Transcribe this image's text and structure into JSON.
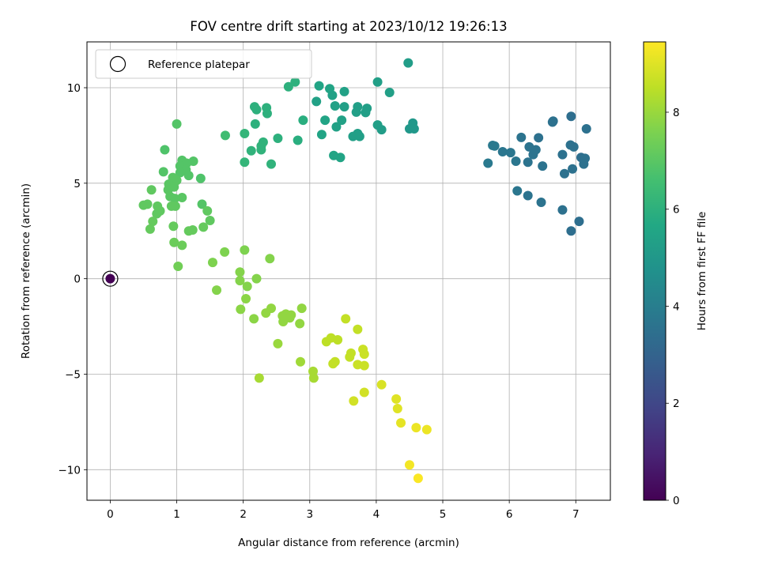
{
  "chart_data": {
    "type": "scatter",
    "title": "FOV centre drift starting at 2023/10/12 19:26:13",
    "xlabel": "Angular distance from reference (arcmin)",
    "ylabel": "Rotation from reference (arcmin)",
    "colorbar_label": "Hours from first FF file",
    "colormap": "viridis",
    "xlim": [
      -0.35,
      7.52
    ],
    "ylim": [
      -11.6,
      12.4
    ],
    "clim": [
      0,
      9.45
    ],
    "xticks": [
      0,
      1,
      2,
      3,
      4,
      5,
      6,
      7
    ],
    "yticks": [
      -10,
      -5,
      0,
      5,
      10
    ],
    "cticks": [
      0,
      2,
      4,
      6,
      8
    ],
    "grid": true,
    "legend": {
      "position": "top-left",
      "entries": [
        {
          "label": "Reference platepar",
          "marker": "open-circle"
        }
      ]
    },
    "reference_point": {
      "x": 0,
      "y": 0,
      "t": 0
    },
    "points": [
      {
        "x": 4.48,
        "y": 11.3,
        "t": 5.2
      },
      {
        "x": 4.02,
        "y": 10.3,
        "t": 5.3
      },
      {
        "x": 3.3,
        "y": 9.95,
        "t": 5.5
      },
      {
        "x": 3.14,
        "y": 10.1,
        "t": 5.5
      },
      {
        "x": 4.2,
        "y": 9.75,
        "t": 5.3
      },
      {
        "x": 3.52,
        "y": 9.8,
        "t": 5.4
      },
      {
        "x": 3.34,
        "y": 9.6,
        "t": 5.4
      },
      {
        "x": 3.1,
        "y": 9.28,
        "t": 5.4
      },
      {
        "x": 3.38,
        "y": 9.05,
        "t": 5.4
      },
      {
        "x": 3.52,
        "y": 9.0,
        "t": 5.3
      },
      {
        "x": 3.72,
        "y": 9.0,
        "t": 5.3
      },
      {
        "x": 3.86,
        "y": 8.92,
        "t": 5.3
      },
      {
        "x": 3.7,
        "y": 8.72,
        "t": 5.3
      },
      {
        "x": 3.84,
        "y": 8.7,
        "t": 5.3
      },
      {
        "x": 3.48,
        "y": 8.3,
        "t": 5.4
      },
      {
        "x": 3.23,
        "y": 8.3,
        "t": 5.5
      },
      {
        "x": 4.02,
        "y": 8.05,
        "t": 5.3
      },
      {
        "x": 3.4,
        "y": 7.95,
        "t": 5.4
      },
      {
        "x": 4.08,
        "y": 7.8,
        "t": 5.2
      },
      {
        "x": 4.55,
        "y": 8.15,
        "t": 5.0
      },
      {
        "x": 4.5,
        "y": 7.85,
        "t": 5.0
      },
      {
        "x": 4.57,
        "y": 7.85,
        "t": 5.0
      },
      {
        "x": 3.65,
        "y": 7.45,
        "t": 5.3
      },
      {
        "x": 3.75,
        "y": 7.45,
        "t": 5.3
      },
      {
        "x": 3.18,
        "y": 7.55,
        "t": 5.5
      },
      {
        "x": 3.72,
        "y": 7.6,
        "t": 5.3
      },
      {
        "x": 3.36,
        "y": 6.45,
        "t": 5.5
      },
      {
        "x": 3.46,
        "y": 6.35,
        "t": 5.5
      },
      {
        "x": 2.78,
        "y": 10.3,
        "t": 6.0
      },
      {
        "x": 2.68,
        "y": 10.05,
        "t": 6.0
      },
      {
        "x": 2.17,
        "y": 9.0,
        "t": 6.0
      },
      {
        "x": 2.2,
        "y": 8.85,
        "t": 6.0
      },
      {
        "x": 2.35,
        "y": 8.95,
        "t": 6.0
      },
      {
        "x": 2.36,
        "y": 8.65,
        "t": 6.0
      },
      {
        "x": 2.9,
        "y": 8.3,
        "t": 5.9
      },
      {
        "x": 2.18,
        "y": 8.1,
        "t": 6.0
      },
      {
        "x": 2.02,
        "y": 7.6,
        "t": 6.2
      },
      {
        "x": 2.3,
        "y": 7.15,
        "t": 6.1
      },
      {
        "x": 2.52,
        "y": 7.35,
        "t": 6.0
      },
      {
        "x": 2.82,
        "y": 7.25,
        "t": 5.9
      },
      {
        "x": 2.27,
        "y": 6.95,
        "t": 6.1
      },
      {
        "x": 2.27,
        "y": 6.75,
        "t": 6.1
      },
      {
        "x": 2.12,
        "y": 6.7,
        "t": 6.1
      },
      {
        "x": 2.02,
        "y": 6.1,
        "t": 6.2
      },
      {
        "x": 2.42,
        "y": 6.0,
        "t": 6.1
      },
      {
        "x": 1.73,
        "y": 7.5,
        "t": 6.5
      },
      {
        "x": 6.93,
        "y": 8.5,
        "t": 3.4
      },
      {
        "x": 7.16,
        "y": 7.85,
        "t": 3.5
      },
      {
        "x": 6.66,
        "y": 8.25,
        "t": 3.5
      },
      {
        "x": 6.65,
        "y": 8.2,
        "t": 3.5
      },
      {
        "x": 6.18,
        "y": 7.4,
        "t": 3.6
      },
      {
        "x": 6.44,
        "y": 7.38,
        "t": 3.5
      },
      {
        "x": 5.75,
        "y": 6.98,
        "t": 3.8
      },
      {
        "x": 5.78,
        "y": 6.95,
        "t": 3.8
      },
      {
        "x": 6.3,
        "y": 6.9,
        "t": 3.6
      },
      {
        "x": 6.4,
        "y": 6.75,
        "t": 3.6
      },
      {
        "x": 6.36,
        "y": 6.5,
        "t": 3.6
      },
      {
        "x": 6.92,
        "y": 7.0,
        "t": 3.5
      },
      {
        "x": 6.97,
        "y": 6.9,
        "t": 3.5
      },
      {
        "x": 5.9,
        "y": 6.65,
        "t": 3.7
      },
      {
        "x": 6.02,
        "y": 6.6,
        "t": 3.7
      },
      {
        "x": 6.8,
        "y": 6.5,
        "t": 3.5
      },
      {
        "x": 7.08,
        "y": 6.35,
        "t": 3.4
      },
      {
        "x": 7.14,
        "y": 6.3,
        "t": 3.5
      },
      {
        "x": 7.12,
        "y": 6.0,
        "t": 3.5
      },
      {
        "x": 5.68,
        "y": 6.05,
        "t": 3.8
      },
      {
        "x": 6.1,
        "y": 6.15,
        "t": 3.7
      },
      {
        "x": 6.28,
        "y": 6.1,
        "t": 3.6
      },
      {
        "x": 6.5,
        "y": 5.9,
        "t": 3.6
      },
      {
        "x": 6.95,
        "y": 5.75,
        "t": 3.5
      },
      {
        "x": 6.83,
        "y": 5.5,
        "t": 3.5
      },
      {
        "x": 6.12,
        "y": 4.6,
        "t": 3.7
      },
      {
        "x": 6.28,
        "y": 4.35,
        "t": 3.6
      },
      {
        "x": 6.48,
        "y": 4.0,
        "t": 3.6
      },
      {
        "x": 6.8,
        "y": 3.6,
        "t": 3.5
      },
      {
        "x": 7.05,
        "y": 3.0,
        "t": 3.4
      },
      {
        "x": 6.93,
        "y": 2.5,
        "t": 3.4
      },
      {
        "x": 1.0,
        "y": 8.1,
        "t": 6.9
      },
      {
        "x": 0.82,
        "y": 6.75,
        "t": 6.8
      },
      {
        "x": 1.08,
        "y": 6.2,
        "t": 6.9
      },
      {
        "x": 1.25,
        "y": 6.15,
        "t": 6.9
      },
      {
        "x": 1.15,
        "y": 6.05,
        "t": 6.9
      },
      {
        "x": 1.05,
        "y": 5.9,
        "t": 6.9
      },
      {
        "x": 1.14,
        "y": 5.7,
        "t": 6.9
      },
      {
        "x": 1.05,
        "y": 5.55,
        "t": 6.9
      },
      {
        "x": 0.8,
        "y": 5.6,
        "t": 6.9
      },
      {
        "x": 1.18,
        "y": 5.4,
        "t": 6.9
      },
      {
        "x": 1.36,
        "y": 5.25,
        "t": 6.8
      },
      {
        "x": 0.94,
        "y": 5.3,
        "t": 7.0
      },
      {
        "x": 1.0,
        "y": 5.15,
        "t": 7.0
      },
      {
        "x": 0.88,
        "y": 4.95,
        "t": 7.0
      },
      {
        "x": 0.96,
        "y": 4.8,
        "t": 7.0
      },
      {
        "x": 0.87,
        "y": 4.65,
        "t": 7.0
      },
      {
        "x": 0.62,
        "y": 4.65,
        "t": 7.1
      },
      {
        "x": 0.9,
        "y": 4.3,
        "t": 7.0
      },
      {
        "x": 1.08,
        "y": 4.25,
        "t": 7.0
      },
      {
        "x": 0.97,
        "y": 4.2,
        "t": 7.0
      },
      {
        "x": 1.38,
        "y": 3.9,
        "t": 6.9
      },
      {
        "x": 0.5,
        "y": 3.85,
        "t": 7.1
      },
      {
        "x": 0.56,
        "y": 3.9,
        "t": 7.1
      },
      {
        "x": 0.71,
        "y": 3.8,
        "t": 7.1
      },
      {
        "x": 0.92,
        "y": 3.8,
        "t": 7.1
      },
      {
        "x": 0.98,
        "y": 3.8,
        "t": 7.1
      },
      {
        "x": 0.75,
        "y": 3.55,
        "t": 7.1
      },
      {
        "x": 0.7,
        "y": 3.4,
        "t": 7.1
      },
      {
        "x": 1.46,
        "y": 3.55,
        "t": 7.1
      },
      {
        "x": 0.64,
        "y": 3.0,
        "t": 7.2
      },
      {
        "x": 1.5,
        "y": 3.05,
        "t": 7.1
      },
      {
        "x": 0.95,
        "y": 2.75,
        "t": 7.2
      },
      {
        "x": 1.4,
        "y": 2.7,
        "t": 7.2
      },
      {
        "x": 0.6,
        "y": 2.6,
        "t": 7.2
      },
      {
        "x": 1.18,
        "y": 2.5,
        "t": 7.2
      },
      {
        "x": 1.24,
        "y": 2.55,
        "t": 7.2
      },
      {
        "x": 0.96,
        "y": 1.9,
        "t": 7.3
      },
      {
        "x": 1.08,
        "y": 1.75,
        "t": 7.3
      },
      {
        "x": 1.02,
        "y": 0.65,
        "t": 7.4
      },
      {
        "x": 1.72,
        "y": 1.4,
        "t": 7.6
      },
      {
        "x": 2.02,
        "y": 1.5,
        "t": 7.6
      },
      {
        "x": 2.4,
        "y": 1.05,
        "t": 7.7
      },
      {
        "x": 1.54,
        "y": 0.85,
        "t": 7.6
      },
      {
        "x": 1.6,
        "y": -0.6,
        "t": 7.7
      },
      {
        "x": 1.95,
        "y": 0.35,
        "t": 7.7
      },
      {
        "x": 1.95,
        "y": -0.1,
        "t": 7.7
      },
      {
        "x": 2.06,
        "y": -0.4,
        "t": 7.7
      },
      {
        "x": 2.2,
        "y": 0.0,
        "t": 7.7
      },
      {
        "x": 2.04,
        "y": -1.05,
        "t": 7.8
      },
      {
        "x": 1.96,
        "y": -1.6,
        "t": 7.8
      },
      {
        "x": 2.16,
        "y": -2.1,
        "t": 7.8
      },
      {
        "x": 2.34,
        "y": -1.8,
        "t": 7.9
      },
      {
        "x": 2.42,
        "y": -1.55,
        "t": 7.9
      },
      {
        "x": 2.59,
        "y": -1.95,
        "t": 7.9
      },
      {
        "x": 2.64,
        "y": -1.85,
        "t": 7.9
      },
      {
        "x": 2.72,
        "y": -1.9,
        "t": 7.9
      },
      {
        "x": 2.88,
        "y": -1.55,
        "t": 7.9
      },
      {
        "x": 2.6,
        "y": -2.25,
        "t": 7.9
      },
      {
        "x": 2.85,
        "y": -2.35,
        "t": 7.9
      },
      {
        "x": 2.7,
        "y": -2.05,
        "t": 7.9
      },
      {
        "x": 2.52,
        "y": -3.4,
        "t": 8.0
      },
      {
        "x": 2.86,
        "y": -4.35,
        "t": 8.1
      },
      {
        "x": 2.24,
        "y": -5.2,
        "t": 8.2
      },
      {
        "x": 3.05,
        "y": -4.85,
        "t": 8.2
      },
      {
        "x": 3.06,
        "y": -5.2,
        "t": 8.2
      },
      {
        "x": 3.25,
        "y": -3.3,
        "t": 8.5
      },
      {
        "x": 3.32,
        "y": -3.1,
        "t": 8.5
      },
      {
        "x": 3.42,
        "y": -3.2,
        "t": 8.5
      },
      {
        "x": 3.54,
        "y": -2.1,
        "t": 8.6
      },
      {
        "x": 3.72,
        "y": -2.65,
        "t": 8.6
      },
      {
        "x": 3.62,
        "y": -3.9,
        "t": 8.6
      },
      {
        "x": 3.6,
        "y": -4.1,
        "t": 8.6
      },
      {
        "x": 3.8,
        "y": -3.7,
        "t": 8.7
      },
      {
        "x": 3.82,
        "y": -3.95,
        "t": 8.7
      },
      {
        "x": 3.38,
        "y": -4.35,
        "t": 8.6
      },
      {
        "x": 3.35,
        "y": -4.45,
        "t": 8.6
      },
      {
        "x": 3.72,
        "y": -4.5,
        "t": 8.7
      },
      {
        "x": 3.82,
        "y": -4.55,
        "t": 8.7
      },
      {
        "x": 3.82,
        "y": -5.95,
        "t": 8.8
      },
      {
        "x": 3.66,
        "y": -6.4,
        "t": 8.8
      },
      {
        "x": 4.08,
        "y": -5.55,
        "t": 8.9
      },
      {
        "x": 4.3,
        "y": -6.3,
        "t": 9.0
      },
      {
        "x": 4.32,
        "y": -6.8,
        "t": 9.0
      },
      {
        "x": 4.37,
        "y": -7.55,
        "t": 9.1
      },
      {
        "x": 4.6,
        "y": -7.8,
        "t": 9.2
      },
      {
        "x": 4.76,
        "y": -7.9,
        "t": 9.2
      },
      {
        "x": 4.5,
        "y": -9.75,
        "t": 9.3
      },
      {
        "x": 4.63,
        "y": -10.45,
        "t": 9.4
      }
    ]
  }
}
